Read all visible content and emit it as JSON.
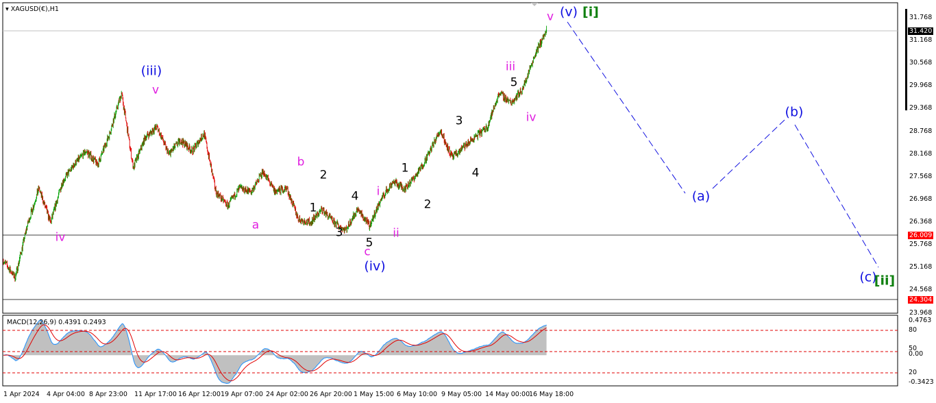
{
  "title": "XAGUSD(€),H1",
  "macd_label": "MACD(12,26,9) 0.4391 0.2493",
  "colors": {
    "bull": "#00a000",
    "bear": "#e00000",
    "macd_hist": "#c0c0c0",
    "macd_line": "#1e90ff",
    "signal": "#e00000",
    "wave_blue": "#1010e0",
    "wave_magenta": "#e020e0",
    "wave_green": "#108010",
    "hline_red": "#e00000"
  },
  "chart_data": {
    "type": "candlestick",
    "symbol": "XAGUSD(€)",
    "timeframe": "H1",
    "ylim": [
      23.968,
      31.768
    ],
    "y_ticks": [
      "31.768",
      "31.168",
      "30.568",
      "29.968",
      "29.368",
      "28.768",
      "28.168",
      "27.568",
      "26.968",
      "26.368",
      "25.768",
      "25.168",
      "24.568",
      "23.968"
    ],
    "x_ticks": [
      "1 Apr 2024",
      "4 Apr 04:00",
      "8 Apr 23:00",
      "11 Apr 17:00",
      "16 Apr 12:00",
      "19 Apr 07:00",
      "24 Apr 02:00",
      "26 Apr 20:00",
      "1 May 15:00",
      "6 May 10:00",
      "9 May 05:00",
      "14 May 00:00",
      "16 May 18:00"
    ],
    "close_path_approx": [
      25.35,
      24.9,
      26.26,
      27.26,
      26.35,
      27.44,
      27.89,
      28.25,
      27.89,
      28.71,
      29.79,
      27.8,
      28.6,
      28.89,
      28.16,
      28.53,
      28.25,
      28.71,
      27.17,
      26.8,
      27.26,
      27.17,
      27.71,
      27.17,
      27.26,
      26.44,
      26.35,
      26.71,
      26.35,
      26.17,
      26.71,
      26.26,
      26.98,
      27.44,
      27.26,
      27.62,
      28.16,
      28.8,
      28.07,
      28.35,
      28.62,
      28.89,
      29.79,
      29.52,
      29.9,
      30.79,
      31.42
    ],
    "current_price": "31.420",
    "levels": [
      {
        "value": "26.009",
        "color": "#e00000"
      },
      {
        "value": "24.304",
        "color": "#e00000"
      }
    ],
    "projection": [
      {
        "label": "(v)",
        "price": 31.6
      },
      {
        "label": "(a)",
        "price": 26.95
      },
      {
        "label": "(b)",
        "price": 29.05
      },
      {
        "label": "(c)",
        "price": 25.1
      }
    ],
    "macd": {
      "ylim": [
        -0.3423,
        0.4763
      ],
      "ticks": [
        "0.4763",
        "80",
        "50",
        "0.00",
        "20",
        "-0.3423"
      ],
      "levels": [
        80,
        50,
        20
      ],
      "macd": 0.4391,
      "signal": 0.2493
    }
  },
  "waves": [
    {
      "t": "(v)",
      "c": "blue"
    },
    {
      "t": "[i]",
      "c": "grn"
    },
    {
      "t": "v",
      "c": "mag"
    },
    {
      "t": "(iii)",
      "c": "blue"
    },
    {
      "t": "v",
      "c": "mag"
    },
    {
      "t": "iv",
      "c": "mag"
    },
    {
      "t": "b",
      "c": "mag"
    },
    {
      "t": "a",
      "c": "mag"
    },
    {
      "t": "2",
      "c": "blk"
    },
    {
      "t": "1",
      "c": "blk"
    },
    {
      "t": "3",
      "c": "blk"
    },
    {
      "t": "4",
      "c": "blk"
    },
    {
      "t": "5",
      "c": "blk"
    },
    {
      "t": "c",
      "c": "mag"
    },
    {
      "t": "(iv)",
      "c": "blue"
    },
    {
      "t": "i",
      "c": "mag"
    },
    {
      "t": "ii",
      "c": "mag"
    },
    {
      "t": "1",
      "c": "blk"
    },
    {
      "t": "2",
      "c": "blk"
    },
    {
      "t": "3",
      "c": "blk"
    },
    {
      "t": "4",
      "c": "blk"
    },
    {
      "t": "5",
      "c": "blk"
    },
    {
      "t": "iii",
      "c": "mag"
    },
    {
      "t": "iv",
      "c": "mag"
    },
    {
      "t": "(b)",
      "c": "blue"
    },
    {
      "t": "(a)",
      "c": "blue"
    },
    {
      "t": "(c)",
      "c": "blue"
    },
    {
      "t": "[ii]",
      "c": "grn"
    }
  ]
}
